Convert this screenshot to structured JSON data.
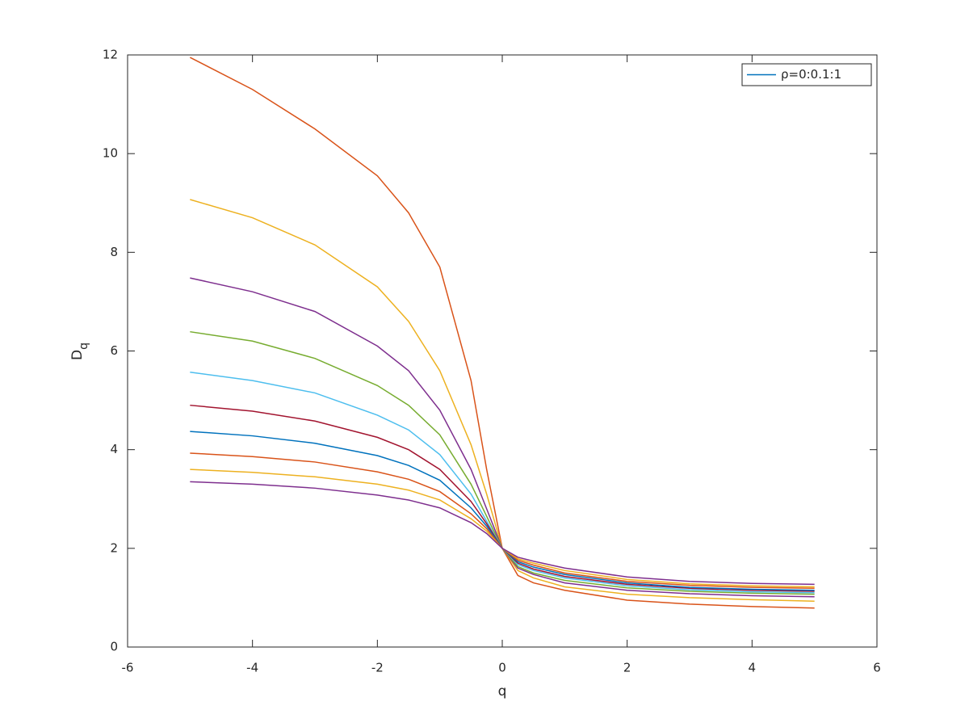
{
  "chart_data": {
    "type": "line",
    "x": [
      -5,
      -4,
      -3,
      -2,
      -1.5,
      -1,
      -0.5,
      -0.25,
      0,
      0.25,
      0.5,
      1,
      2,
      3,
      4,
      5
    ],
    "series": [
      {
        "name": "ρ=0:0.1:1",
        "color": "#0072BD",
        "values": [
          null,
          null,
          null,
          null,
          null,
          null,
          null,
          null,
          null,
          null,
          null,
          null,
          null,
          null,
          null,
          null
        ]
      },
      {
        "color": "#D95319",
        "values": [
          11.95,
          11.3,
          10.5,
          9.55,
          8.8,
          7.7,
          5.4,
          3.6,
          2,
          1.45,
          1.3,
          1.15,
          0.95,
          0.87,
          0.82,
          0.79
        ]
      },
      {
        "color": "#EDB120",
        "values": [
          9.07,
          8.7,
          8.15,
          7.3,
          6.6,
          5.6,
          4.1,
          3.1,
          2,
          1.55,
          1.4,
          1.22,
          1.07,
          1.0,
          0.96,
          0.93
        ]
      },
      {
        "color": "#7E2F8E",
        "values": [
          7.48,
          7.2,
          6.8,
          6.1,
          5.6,
          4.8,
          3.6,
          2.8,
          2,
          1.6,
          1.47,
          1.3,
          1.15,
          1.08,
          1.04,
          1.02
        ]
      },
      {
        "color": "#77AC30",
        "values": [
          6.39,
          6.2,
          5.85,
          5.3,
          4.9,
          4.3,
          3.3,
          2.65,
          2,
          1.63,
          1.5,
          1.35,
          1.2,
          1.13,
          1.09,
          1.07
        ]
      },
      {
        "color": "#4DBEEE",
        "values": [
          5.57,
          5.4,
          5.15,
          4.7,
          4.4,
          3.9,
          3.1,
          2.55,
          2,
          1.67,
          1.55,
          1.4,
          1.24,
          1.16,
          1.12,
          1.1
        ]
      },
      {
        "color": "#A2142F",
        "values": [
          4.9,
          4.78,
          4.58,
          4.25,
          4.0,
          3.6,
          2.95,
          2.5,
          2,
          1.7,
          1.58,
          1.43,
          1.27,
          1.19,
          1.15,
          1.13
        ]
      },
      {
        "color": "#0072BD",
        "values": [
          4.37,
          4.28,
          4.13,
          3.88,
          3.68,
          3.38,
          2.82,
          2.45,
          2,
          1.73,
          1.62,
          1.47,
          1.3,
          1.21,
          1.17,
          1.15
        ]
      },
      {
        "color": "#D95319",
        "values": [
          3.93,
          3.86,
          3.75,
          3.55,
          3.4,
          3.15,
          2.7,
          2.4,
          2,
          1.76,
          1.66,
          1.5,
          1.33,
          1.25,
          1.21,
          1.19
        ]
      },
      {
        "color": "#EDB120",
        "values": [
          3.6,
          3.54,
          3.45,
          3.3,
          3.18,
          2.98,
          2.6,
          2.35,
          2,
          1.79,
          1.7,
          1.55,
          1.37,
          1.28,
          1.24,
          1.22
        ]
      },
      {
        "color": "#7E2F8E",
        "values": [
          3.35,
          3.3,
          3.22,
          3.08,
          2.98,
          2.82,
          2.52,
          2.3,
          2,
          1.82,
          1.74,
          1.6,
          1.42,
          1.33,
          1.29,
          1.27
        ]
      }
    ],
    "xlabel": "q",
    "ylabel": {
      "text": "D",
      "subscript": "q"
    },
    "xlim": [
      -6,
      6
    ],
    "xticks": [
      -6,
      -4,
      -2,
      0,
      2,
      4,
      6
    ],
    "ylim": [
      0,
      12
    ],
    "yticks": [
      0,
      2,
      4,
      6,
      8,
      10,
      12
    ],
    "grid": false,
    "legend": "northeast"
  }
}
